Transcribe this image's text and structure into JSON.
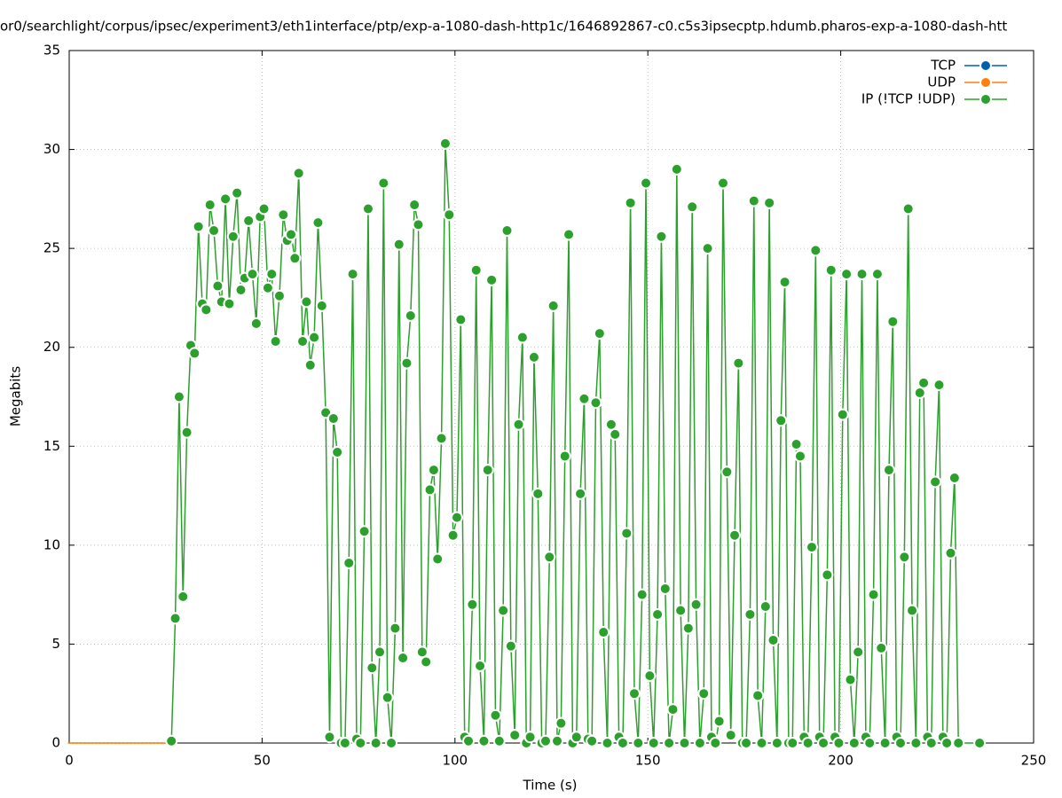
{
  "chart_data": {
    "type": "line",
    "title": "or0/searchlight/corpus/ipsec/experiment3/eth1interface/ptp/exp-a-1080-dash-http1c/1646892867-c0.c5s3ipsecptp.hdumb.pharos-exp-a-1080-dash-htt",
    "xlabel": "Time (s)",
    "ylabel": "Megabits",
    "xlim": [
      0,
      250
    ],
    "xticks": [
      0,
      50,
      100,
      150,
      200,
      250
    ],
    "ylim": [
      0,
      35
    ],
    "yticks": [
      0,
      5,
      10,
      15,
      20,
      25,
      30,
      35
    ],
    "grid": true,
    "legend": "upper right",
    "series": [
      {
        "name": "TCP",
        "color": "#0060ad",
        "x": [],
        "values": []
      },
      {
        "name": "UDP",
        "color": "#ff7f0e",
        "x": [
          0,
          1,
          2,
          3,
          4,
          5,
          6,
          7,
          8,
          9,
          10,
          11,
          12,
          13,
          14,
          15,
          16,
          17,
          18,
          19,
          20,
          21,
          22,
          23,
          24,
          25
        ],
        "values": [
          0,
          0,
          0,
          0,
          0,
          0,
          0,
          0,
          0,
          0,
          0,
          0,
          0,
          0,
          0,
          0,
          0,
          0,
          0,
          0,
          0,
          0,
          0,
          0,
          0,
          0
        ]
      },
      {
        "name": "IP (!TCP  !UDP)",
        "color": "#2ca02c",
        "x": [
          26.5,
          27.5,
          28.5,
          29.5,
          30.5,
          31.5,
          32.5,
          33.5,
          34.5,
          35.5,
          36.5,
          37.5,
          38.5,
          39.5,
          40.5,
          41.5,
          42.5,
          43.5,
          44.5,
          45.5,
          46.5,
          47.5,
          48.5,
          49.5,
          50.5,
          51.5,
          52.5,
          53.5,
          54.5,
          55.5,
          56.5,
          57.5,
          58.5,
          59.5,
          60.5,
          61.5,
          62.5,
          63.5,
          64.5,
          65.5,
          66.5,
          67.5,
          68.5,
          69.5,
          70.5,
          71.5,
          72.5,
          73.5,
          74.5,
          75.5,
          76.5,
          77.5,
          78.5,
          79.5,
          80.5,
          81.5,
          82.5,
          83.5,
          84.5,
          85.5,
          86.5,
          87.5,
          88.5,
          89.5,
          90.5,
          91.5,
          92.5,
          93.5,
          94.5,
          95.5,
          96.5,
          97.5,
          98.5,
          99.5,
          100.5,
          101.5,
          102.5,
          103.5,
          104.5,
          105.5,
          106.5,
          107.5,
          108.5,
          109.5,
          110.5,
          111.5,
          112.5,
          113.5,
          114.5,
          115.5,
          116.5,
          117.5,
          118.5,
          119.5,
          120.5,
          121.5,
          122.5,
          123.5,
          124.5,
          125.5,
          126.5,
          127.5,
          128.5,
          129.5,
          130.5,
          131.5,
          132.5,
          133.5,
          134.5,
          135.5,
          136.5,
          137.5,
          138.5,
          139.5,
          140.5,
          141.5,
          142.5,
          143.5,
          144.5,
          145.5,
          146.5,
          147.5,
          148.5,
          149.5,
          150.5,
          151.5,
          152.5,
          153.5,
          154.5,
          155.5,
          156.5,
          157.5,
          158.5,
          159.5,
          160.5,
          161.5,
          162.5,
          163.5,
          164.5,
          165.5,
          166.5,
          167.5,
          168.5,
          169.5,
          170.5,
          171.5,
          172.5,
          173.5,
          174.5,
          175.5,
          176.5,
          177.5,
          178.5,
          179.5,
          180.5,
          181.5,
          182.5,
          183.5,
          184.5,
          185.5,
          186.5,
          187.5,
          188.5,
          189.5,
          190.5,
          191.5,
          192.5,
          193.5,
          194.5,
          195.5,
          196.5,
          197.5,
          198.5,
          199.5,
          200.5,
          201.5,
          202.5,
          203.5,
          204.5,
          205.5,
          206.5,
          207.5,
          208.5,
          209.5,
          210.5,
          211.5,
          212.5,
          213.5,
          214.5,
          215.5,
          216.5,
          217.5,
          218.5,
          219.5,
          220.5,
          221.5,
          222.5,
          223.5,
          224.5,
          225.5,
          226.5,
          227.5,
          228.5,
          229.5,
          230.5,
          236
        ],
        "values": [
          0.1,
          6.3,
          17.5,
          7.4,
          15.7,
          20.1,
          19.7,
          26.1,
          22.2,
          21.9,
          27.2,
          25.9,
          23.1,
          22.3,
          27.5,
          22.2,
          25.6,
          27.8,
          22.9,
          23.5,
          26.4,
          23.7,
          21.2,
          26.6,
          27.0,
          23.0,
          23.7,
          20.3,
          22.6,
          26.7,
          25.4,
          25.7,
          24.5,
          28.8,
          20.3,
          22.3,
          19.1,
          20.5,
          26.3,
          22.1,
          16.7,
          0.3,
          16.4,
          14.7,
          0,
          0,
          9.1,
          23.7,
          0.2,
          0,
          10.7,
          27.0,
          3.8,
          0,
          4.6,
          28.3,
          2.3,
          0,
          5.8,
          25.2,
          4.3,
          19.2,
          21.6,
          27.2,
          26.2,
          4.6,
          4.1,
          12.8,
          13.8,
          9.3,
          15.4,
          30.3,
          26.7,
          10.5,
          11.4,
          21.4,
          0.3,
          0.1,
          7.0,
          23.9,
          3.9,
          0.1,
          13.8,
          23.4,
          1.4,
          0.1,
          6.7,
          25.9,
          4.9,
          0.4,
          16.1,
          20.5,
          0,
          0.3,
          19.5,
          12.6,
          0,
          0.1,
          9.4,
          22.1,
          0.1,
          1.0,
          14.5,
          25.7,
          0,
          0.3,
          12.6,
          17.4,
          0.2,
          0.1,
          17.2,
          20.7,
          5.6,
          0,
          16.1,
          15.6,
          0.3,
          0,
          10.6,
          27.3,
          2.5,
          0,
          7.5,
          28.3,
          3.4,
          0,
          6.5,
          25.6,
          7.8,
          0,
          1.7,
          29.0,
          6.7,
          0,
          5.8,
          27.1,
          7.0,
          0,
          2.5,
          25.0,
          0.3,
          0,
          1.1,
          28.3,
          13.7,
          0.4,
          10.5,
          19.2,
          0,
          0,
          6.5,
          27.4,
          2.4,
          0,
          6.9,
          27.3,
          5.2,
          0,
          16.3,
          23.3,
          0,
          0,
          15.1,
          14.5,
          0.3,
          0,
          9.9,
          24.9,
          0.3,
          0,
          8.5,
          23.9,
          0.3,
          0,
          16.6,
          23.7,
          3.2,
          0,
          4.6,
          23.7,
          0.3,
          0,
          7.5,
          23.7,
          4.8,
          0,
          13.8,
          21.3,
          0.3,
          0,
          9.4,
          27.0,
          6.7,
          0,
          17.7,
          18.2,
          0.3,
          0,
          13.2,
          18.1,
          0.3,
          0,
          9.6,
          13.4,
          0,
          0
        ]
      }
    ]
  }
}
